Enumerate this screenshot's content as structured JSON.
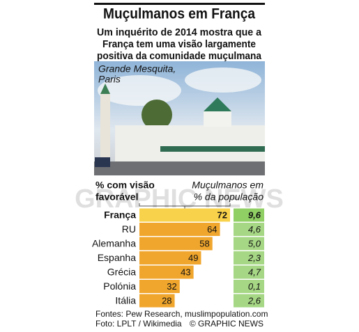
{
  "chart_data": {
    "type": "bar",
    "title": "Muçulmanos em França",
    "subtitle": [
      "Um inquérito de 2014 mostra que a",
      "França tem uma visão largamente",
      "positiva da comunidade muçulmana"
    ],
    "photo_caption": [
      "Grande Mesquita,",
      "Paris"
    ],
    "watermark": "GRAPHIC NEWS",
    "bar_header": [
      "% com visão",
      "favorável"
    ],
    "categories": [
      "França",
      "RU",
      "Alemanha",
      "Espanha",
      "Grécia",
      "Polónia",
      "Itália"
    ],
    "values": [
      72,
      64,
      58,
      49,
      43,
      32,
      28
    ],
    "color": "#f0a62c",
    "highlight_color": "#f8d24a",
    "highlight": "França",
    "muslim_share": {
      "header": [
        "Muçulmanos em",
        "% da população"
      ],
      "values": [
        9.6,
        4.6,
        5.0,
        2.3,
        4.7,
        0.1,
        2.6
      ],
      "value_labels": [
        "9,6",
        "4,6",
        "5,0",
        "2,3",
        "4,7",
        "0,1",
        "2,6"
      ],
      "color": "#a6d785",
      "highlight_color": "#8fcf63"
    },
    "sources": "Fontes: Pew Research, muslimpopulation.com",
    "photo_credit": "Foto: LPLT / Wikimedia",
    "copyright": "© GRAPHIC NEWS"
  }
}
